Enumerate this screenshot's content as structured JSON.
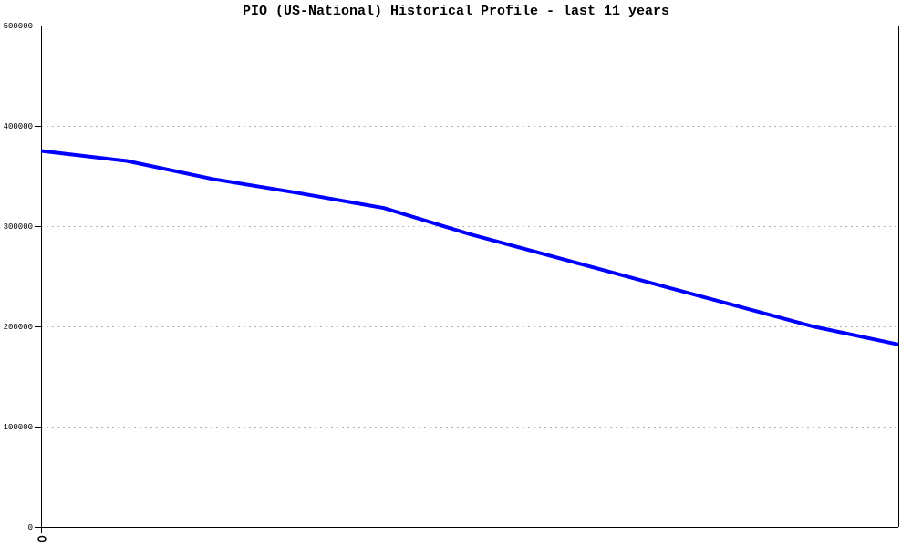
{
  "chart_data": {
    "type": "line",
    "title": "PIO (US-National) Historical Profile - last 11 years",
    "xlabel": "",
    "ylabel": "",
    "x": [
      1,
      2,
      3,
      4,
      5,
      6,
      7,
      8,
      9,
      10,
      11
    ],
    "xtick_labels_visible": false,
    "ylim": [
      0,
      500000
    ],
    "yticks": [
      0,
      100000,
      200000,
      300000,
      400000,
      500000
    ],
    "ytick_labels": [
      "0",
      "100000",
      "200000",
      "300000",
      "400000",
      "500000"
    ],
    "grid": {
      "horizontal": true,
      "style": "dashed",
      "color": "#b3b3b3"
    },
    "legend": {
      "visible": false
    },
    "axis_color": "#000000",
    "background_color": "#ffffff",
    "series": [
      {
        "name": "PIO (US-National)",
        "color": "#0000ff",
        "line_width": 4,
        "values": [
          375000,
          365000,
          347000,
          333000,
          318000,
          292000,
          269000,
          246000,
          223000,
          200000,
          182000
        ]
      }
    ]
  }
}
